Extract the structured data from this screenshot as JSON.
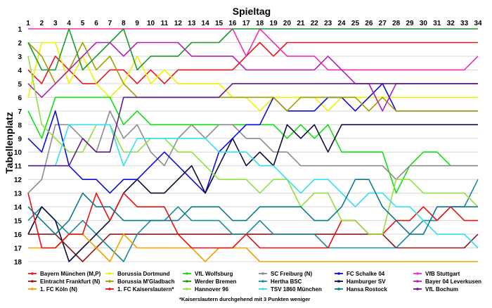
{
  "chart_data": {
    "type": "line",
    "title": "Spieltag",
    "ylabel": "Tabellenplatz",
    "x": [
      1,
      2,
      3,
      4,
      5,
      6,
      7,
      8,
      9,
      10,
      11,
      12,
      13,
      14,
      15,
      16,
      17,
      18,
      19,
      20,
      21,
      22,
      23,
      24,
      25,
      26,
      27,
      28,
      29,
      30,
      31,
      32,
      33,
      34
    ],
    "ylim": [
      1,
      18
    ],
    "y_inverted": true,
    "grid": true,
    "legend_position": "bottom",
    "footnote": "*Kaiserslautern durchgehend mit 3 Punkten weniger",
    "series": [
      {
        "name": "Bayern München (M,P)",
        "color": "#e8141c",
        "values": [
          4,
          5,
          3,
          4,
          5,
          5,
          4,
          4,
          5,
          4,
          5,
          4,
          4,
          4,
          4,
          4,
          3,
          2,
          3,
          2,
          2,
          2,
          2,
          2,
          2,
          2,
          2,
          2,
          2,
          2,
          2,
          2,
          2,
          2
        ]
      },
      {
        "name": "Borussia Dortmund",
        "color": "#f0f000",
        "values": [
          6,
          2,
          2,
          5,
          3,
          5,
          6,
          5,
          3,
          5,
          4,
          5,
          5,
          5,
          5,
          6,
          6,
          7,
          6,
          6,
          6,
          6,
          7,
          6,
          6,
          6,
          6,
          6,
          6,
          6,
          6,
          6,
          6,
          6
        ]
      },
      {
        "name": "VfL Wolfsburg",
        "color": "#10e010",
        "values": [
          7,
          9,
          6,
          6,
          6,
          6,
          6,
          8,
          7,
          8,
          8,
          8,
          8,
          8,
          8,
          8,
          8,
          8,
          8,
          9,
          8,
          9,
          8,
          10,
          10,
          10,
          10,
          13,
          11,
          10,
          10,
          11,
          11,
          11
        ]
      },
      {
        "name": "SC Freiburg (N)",
        "color": "#8c8c8c",
        "values": [
          13,
          12,
          8,
          8,
          9,
          10,
          7,
          9,
          8,
          10,
          11,
          9,
          8,
          9,
          8,
          8,
          9,
          9,
          10,
          10,
          11,
          11,
          11,
          11,
          11,
          11,
          11,
          12,
          11,
          11,
          11,
          11,
          11,
          11
        ]
      },
      {
        "name": "FC Schalke 04",
        "color": "#0b0bdc",
        "values": [
          9,
          10,
          7,
          11,
          12,
          12,
          13,
          12,
          12,
          11,
          10,
          11,
          12,
          13,
          10,
          9,
          8,
          8,
          6,
          7,
          7,
          7,
          6,
          6,
          7,
          6,
          5,
          7,
          7,
          7,
          7,
          7,
          7,
          7
        ]
      },
      {
        "name": "VfB Stuttgart",
        "color": "#f030b0",
        "values": [
          1,
          1,
          1,
          1,
          1,
          1,
          1,
          1,
          1,
          1,
          1,
          1,
          1,
          1,
          1,
          1,
          3,
          1,
          2,
          3,
          3,
          3,
          4,
          4,
          4,
          4,
          4,
          4,
          4,
          4,
          4,
          4,
          4,
          3
        ]
      },
      {
        "name": "Eintracht Frankfurt (N)",
        "color": "#8b1a1a",
        "values": [
          16,
          16,
          16,
          17,
          18,
          17,
          16,
          16,
          16,
          16,
          16,
          16,
          16,
          16,
          16,
          16,
          16,
          16,
          16,
          16,
          16,
          16,
          16,
          16,
          16,
          16,
          16,
          17,
          17,
          17,
          17,
          17,
          17,
          16
        ]
      },
      {
        "name": "Borussia M'Gladbach",
        "color": "#a0a000",
        "values": [
          2,
          3,
          5,
          4,
          2,
          4,
          3,
          5,
          6,
          6,
          6,
          6,
          6,
          6,
          6,
          6,
          6,
          6,
          6,
          7,
          6,
          6,
          6,
          6,
          6,
          7,
          6,
          7,
          7,
          7,
          7,
          7,
          7,
          7
        ]
      },
      {
        "name": "Werder Bremen",
        "color": "#1a9a2a",
        "values": [
          2,
          4,
          4,
          1,
          4,
          3,
          2,
          1,
          4,
          3,
          3,
          3,
          2,
          2,
          2,
          1,
          1,
          1,
          1,
          1,
          1,
          1,
          1,
          1,
          1,
          1,
          1,
          1,
          1,
          1,
          1,
          1,
          1,
          1
        ]
      },
      {
        "name": "Hertha BSC",
        "color": "#1a8a9a",
        "values": [
          15,
          14,
          15,
          16,
          15,
          16,
          17,
          18,
          16,
          15,
          15,
          14,
          15,
          15,
          15,
          16,
          16,
          15,
          16,
          16,
          16,
          16,
          17,
          17,
          17,
          17,
          17,
          17,
          16,
          15,
          15,
          14,
          14,
          12
        ]
      },
      {
        "name": "Hamburger SV",
        "color": "#0a0a3a",
        "values": [
          16,
          14,
          15,
          18,
          17,
          16,
          15,
          13,
          12,
          13,
          13,
          12,
          11,
          13,
          11,
          9,
          11,
          10,
          11,
          8,
          9,
          8,
          10,
          8,
          8,
          8,
          8,
          8,
          8,
          8,
          8,
          8,
          8,
          8
        ]
      },
      {
        "name": "Bayer 04 Leverkusen",
        "color": "#b020b0",
        "values": [
          5,
          6,
          5,
          4,
          3,
          2,
          2,
          3,
          2,
          2,
          2,
          2,
          3,
          3,
          3,
          3,
          4,
          4,
          4,
          4,
          4,
          4,
          3,
          4,
          5,
          5,
          7,
          5,
          5,
          5,
          5,
          5,
          5,
          5
        ]
      },
      {
        "name": "1. FC Köln (N)",
        "color": "#f5a000",
        "values": [
          17,
          17,
          17,
          16,
          16,
          17,
          18,
          16,
          17,
          17,
          17,
          17,
          17,
          18,
          17,
          17,
          17,
          18,
          18,
          18,
          18,
          18,
          18,
          18,
          18,
          18,
          18,
          18,
          18,
          18,
          18,
          18,
          18,
          18
        ]
      },
      {
        "name": "1. FC Kaiserslautern*",
        "color": "#e81010",
        "values": [
          13,
          17,
          17,
          16,
          16,
          13,
          15,
          13,
          14,
          14,
          14,
          16,
          17,
          17,
          17,
          17,
          16,
          17,
          17,
          17,
          17,
          17,
          17,
          15,
          15,
          16,
          16,
          15,
          15,
          14,
          15,
          14,
          15,
          15
        ]
      },
      {
        "name": "Hannover 96",
        "color": "#90e040",
        "values": [
          3,
          8,
          9,
          10,
          10,
          8,
          8,
          10,
          10,
          9,
          9,
          10,
          10,
          11,
          12,
          12,
          12,
          13,
          12,
          12,
          14,
          13,
          13,
          15,
          15,
          16,
          16,
          12,
          12,
          13,
          13,
          13,
          13,
          14
        ]
      },
      {
        "name": "TSV 1860 München",
        "color": "#30e0f0",
        "values": [
          11,
          11,
          11,
          8,
          8,
          8,
          8,
          11,
          9,
          9,
          9,
          9,
          9,
          9,
          10,
          10,
          10,
          11,
          11,
          12,
          13,
          12,
          12,
          13,
          14,
          13,
          13,
          14,
          14,
          15,
          16,
          16,
          16,
          17
        ]
      },
      {
        "name": "Hansa Rostock",
        "color": "#0a7a8a",
        "values": [
          14,
          15,
          16,
          15,
          13,
          14,
          14,
          15,
          15,
          15,
          15,
          15,
          14,
          14,
          14,
          15,
          15,
          14,
          14,
          14,
          14,
          15,
          15,
          14,
          12,
          12,
          14,
          15,
          16,
          16,
          14,
          14,
          14,
          14
        ]
      },
      {
        "name": "VfL Bochum",
        "color": "#5a1a8a",
        "values": [
          11,
          11,
          11,
          11,
          9,
          10,
          10,
          6,
          6,
          6,
          6,
          6,
          6,
          6,
          6,
          5,
          5,
          5,
          5,
          5,
          5,
          5,
          5,
          5,
          5,
          5,
          5,
          5,
          5,
          5,
          5,
          5,
          5,
          5
        ]
      }
    ]
  }
}
